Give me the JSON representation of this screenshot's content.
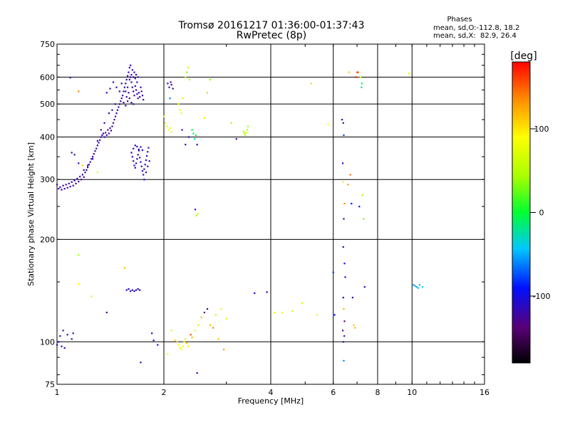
{
  "header": {
    "title_line1": "Tromsø 20161217 01:36:00-01:37:43",
    "title_line2": "RwPretec (8p)"
  },
  "phases_panel": {
    "heading": "Phases",
    "line_o": "mean, sd,O:-112.8, 18.2",
    "line_x": "mean, sd,X:  82.9, 26.4"
  },
  "chart_data": {
    "type": "scatter",
    "x_scale": "log",
    "y_scale": "log",
    "xlim": [
      1,
      16
    ],
    "ylim": [
      75,
      750
    ],
    "xlabel": "Frequency [MHz]",
    "ylabel": "Stationary phase Virtual Height [km]",
    "x_ticks": [
      1,
      2,
      4,
      6,
      8,
      10,
      16
    ],
    "y_ticks": [
      75,
      100,
      200,
      300,
      400,
      500,
      600,
      750
    ],
    "x_gridlines": [
      2,
      4,
      6,
      8,
      10
    ],
    "y_gridlines": [
      100,
      200,
      300,
      400,
      500,
      600
    ],
    "grid": true,
    "colorbar": {
      "label": "[deg]",
      "range": [
        -180,
        180
      ],
      "ticks": [
        -100,
        0,
        100
      ]
    },
    "points": [
      [
        1.0,
        290,
        -120
      ],
      [
        1.01,
        282,
        -120
      ],
      [
        1.02,
        285,
        -115
      ],
      [
        1.03,
        280,
        -122
      ],
      [
        1.04,
        288,
        -118
      ],
      [
        1.05,
        282,
        -120
      ],
      [
        1.06,
        290,
        -115
      ],
      [
        1.07,
        284,
        -120
      ],
      [
        1.08,
        292,
        -118
      ],
      [
        1.09,
        286,
        -122
      ],
      [
        1.1,
        295,
        -118
      ],
      [
        1.11,
        288,
        -120
      ],
      [
        1.12,
        298,
        -115
      ],
      [
        1.13,
        292,
        -120
      ],
      [
        1.14,
        302,
        -118
      ],
      [
        1.15,
        296,
        -122
      ],
      [
        1.16,
        306,
        -118
      ],
      [
        1.17,
        300,
        -120
      ],
      [
        1.18,
        310,
        -115
      ],
      [
        1.19,
        305,
        -120
      ],
      [
        1.2,
        315,
        -118
      ],
      [
        1.21,
        320,
        -120
      ],
      [
        1.22,
        326,
        -115
      ],
      [
        1.23,
        332,
        -120
      ],
      [
        1.24,
        338,
        -118
      ],
      [
        1.25,
        345,
        -122
      ],
      [
        1.26,
        350,
        -115
      ],
      [
        1.27,
        357,
        -120
      ],
      [
        1.28,
        364,
        -118
      ],
      [
        1.29,
        370,
        -120
      ],
      [
        1.3,
        378,
        -115
      ],
      [
        1.31,
        385,
        -120
      ],
      [
        1.32,
        392,
        -118
      ],
      [
        1.33,
        400,
        -122
      ],
      [
        1.34,
        405,
        -118
      ],
      [
        1.35,
        410,
        -120
      ],
      [
        1.36,
        400,
        -115
      ],
      [
        1.37,
        412,
        -120
      ],
      [
        1.38,
        405,
        -118
      ],
      [
        1.39,
        420,
        -122
      ],
      [
        1.4,
        410,
        -118
      ],
      [
        1.41,
        425,
        -120
      ],
      [
        1.42,
        418,
        -115
      ],
      [
        1.43,
        430,
        -120
      ],
      [
        1.44,
        440,
        -118
      ],
      [
        1.45,
        450,
        -122
      ],
      [
        1.46,
        460,
        -118
      ],
      [
        1.47,
        470,
        -120
      ],
      [
        1.48,
        480,
        -115
      ],
      [
        1.49,
        490,
        -120
      ],
      [
        1.5,
        500,
        -118
      ],
      [
        1.51,
        510,
        -122
      ],
      [
        1.52,
        520,
        -118
      ],
      [
        1.53,
        530,
        -120
      ],
      [
        1.54,
        545,
        -115
      ],
      [
        1.55,
        560,
        -120
      ],
      [
        1.56,
        575,
        -118
      ],
      [
        1.57,
        590,
        -122
      ],
      [
        1.58,
        605,
        -118
      ],
      [
        1.59,
        620,
        -120
      ],
      [
        1.6,
        640,
        -115
      ],
      [
        1.61,
        600,
        -120
      ],
      [
        1.62,
        580,
        -118
      ],
      [
        1.63,
        560,
        -122
      ],
      [
        1.64,
        545,
        -118
      ],
      [
        1.65,
        530,
        -120
      ],
      [
        1.66,
        565,
        -115
      ],
      [
        1.67,
        550,
        -120
      ],
      [
        1.68,
        535,
        -118
      ],
      [
        1.69,
        520,
        -122
      ],
      [
        1.7,
        540,
        -118
      ],
      [
        1.71,
        525,
        -120
      ],
      [
        1.72,
        560,
        -115
      ],
      [
        1.73,
        545,
        -120
      ],
      [
        1.74,
        530,
        -118
      ],
      [
        1.75,
        515,
        -122
      ],
      [
        1.56,
        545,
        -118
      ],
      [
        1.58,
        560,
        -120
      ],
      [
        1.6,
        590,
        -115
      ],
      [
        1.62,
        610,
        -120
      ],
      [
        1.64,
        600,
        -118
      ],
      [
        1.66,
        595,
        -122
      ],
      [
        1.68,
        580,
        -118
      ],
      [
        1.61,
        650,
        -120
      ],
      [
        1.63,
        630,
        -115
      ],
      [
        1.65,
        620,
        -120
      ],
      [
        1.67,
        610,
        -118
      ],
      [
        1.69,
        600,
        -122
      ],
      [
        1.57,
        525,
        -118
      ],
      [
        1.59,
        540,
        -120
      ],
      [
        1.54,
        505,
        -115
      ],
      [
        1.56,
        495,
        -120
      ],
      [
        1.58,
        510,
        -118
      ],
      [
        1.6,
        520,
        -122
      ],
      [
        1.62,
        505,
        -118
      ],
      [
        1.64,
        500,
        -120
      ],
      [
        1.62,
        360,
        -110
      ],
      [
        1.63,
        350,
        -112
      ],
      [
        1.64,
        340,
        -115
      ],
      [
        1.65,
        330,
        -110
      ],
      [
        1.66,
        325,
        -112
      ],
      [
        1.67,
        335,
        -115
      ],
      [
        1.68,
        345,
        -110
      ],
      [
        1.69,
        355,
        -112
      ],
      [
        1.7,
        365,
        -115
      ],
      [
        1.71,
        348,
        -110
      ],
      [
        1.72,
        338,
        -112
      ],
      [
        1.73,
        328,
        -115
      ],
      [
        1.74,
        318,
        -110
      ],
      [
        1.75,
        310,
        -112
      ],
      [
        1.76,
        322,
        -115
      ],
      [
        1.77,
        332,
        -110
      ],
      [
        1.78,
        342,
        -112
      ],
      [
        1.79,
        352,
        -115
      ],
      [
        1.8,
        362,
        -110
      ],
      [
        1.81,
        372,
        -112
      ],
      [
        1.76,
        300,
        -115
      ],
      [
        1.78,
        315,
        -110
      ],
      [
        1.8,
        328,
        -112
      ],
      [
        1.82,
        340,
        -115
      ],
      [
        1.64,
        370,
        -110
      ],
      [
        1.66,
        378,
        -112
      ],
      [
        1.68,
        375,
        -115
      ],
      [
        1.7,
        368,
        -110
      ],
      [
        1.72,
        374,
        -112
      ],
      [
        1.74,
        366,
        -115
      ],
      [
        1.1,
        360,
        -118
      ],
      [
        1.12,
        355,
        -120
      ],
      [
        1.15,
        335,
        -115
      ],
      [
        1.19,
        320,
        -118
      ],
      [
        1.22,
        330,
        -120
      ],
      [
        1.26,
        345,
        -115
      ],
      [
        1.3,
        390,
        -118
      ],
      [
        1.33,
        420,
        -120
      ],
      [
        1.36,
        440,
        -115
      ],
      [
        1.4,
        470,
        -118
      ],
      [
        1.43,
        480,
        -120
      ],
      [
        1.46,
        500,
        -115
      ],
      [
        1.38,
        540,
        -118
      ],
      [
        1.41,
        555,
        -120
      ],
      [
        1.44,
        580,
        -115
      ],
      [
        1.47,
        560,
        -118
      ],
      [
        1.5,
        545,
        -120
      ],
      [
        1.52,
        575,
        -115
      ],
      [
        1.09,
        598,
        -118
      ],
      [
        1.04,
        108,
        -118
      ],
      [
        1.02,
        104,
        -120
      ],
      [
        1.01,
        100,
        -115
      ],
      [
        1.0,
        98,
        -118
      ],
      [
        1.03,
        97,
        -120
      ],
      [
        1.05,
        96,
        -118
      ],
      [
        1.07,
        105,
        -115
      ],
      [
        1.11,
        106,
        -120
      ],
      [
        1.1,
        102,
        -118
      ],
      [
        1.15,
        545,
        140
      ],
      [
        1.15,
        180,
        40
      ],
      [
        1.15,
        148,
        90
      ],
      [
        1.18,
        330,
        110
      ],
      [
        1.25,
        136,
        100
      ],
      [
        1.3,
        315,
        95
      ],
      [
        1.38,
        122,
        -130
      ],
      [
        1.55,
        165,
        120
      ],
      [
        1.57,
        142,
        -115
      ],
      [
        1.59,
        143,
        -110
      ],
      [
        1.61,
        141,
        -112
      ],
      [
        1.63,
        142,
        -115
      ],
      [
        1.65,
        141,
        -110
      ],
      [
        1.67,
        142,
        -112
      ],
      [
        1.69,
        143,
        -115
      ],
      [
        1.71,
        142,
        -110
      ],
      [
        1.72,
        87,
        -110
      ],
      [
        1.85,
        106,
        -110
      ],
      [
        1.87,
        101,
        -105
      ],
      [
        1.92,
        98,
        -100
      ],
      [
        2.05,
        575,
        -120
      ],
      [
        2.07,
        560,
        -118
      ],
      [
        2.09,
        580,
        -122
      ],
      [
        2.1,
        570,
        -120
      ],
      [
        2.12,
        555,
        -118
      ],
      [
        2.08,
        520,
        -60
      ],
      [
        2.02,
        440,
        80
      ],
      [
        2.04,
        430,
        75
      ],
      [
        2.06,
        420,
        85
      ],
      [
        2.08,
        425,
        80
      ],
      [
        2.1,
        415,
        78
      ],
      [
        2.0,
        460,
        85
      ],
      [
        2.2,
        500,
        70
      ],
      [
        2.22,
        480,
        75
      ],
      [
        2.24,
        470,
        80
      ],
      [
        2.26,
        520,
        65
      ],
      [
        2.3,
        600,
        55
      ],
      [
        2.32,
        620,
        30
      ],
      [
        2.34,
        640,
        60
      ],
      [
        2.36,
        590,
        50
      ],
      [
        2.25,
        420,
        -110
      ],
      [
        2.3,
        380,
        -115
      ],
      [
        2.35,
        400,
        -110
      ],
      [
        2.4,
        420,
        -10
      ],
      [
        2.42,
        410,
        -15
      ],
      [
        2.44,
        395,
        -20
      ],
      [
        2.46,
        405,
        -5
      ],
      [
        2.48,
        380,
        -105
      ],
      [
        2.45,
        245,
        -110
      ],
      [
        2.47,
        235,
        40
      ],
      [
        2.49,
        238,
        60
      ],
      [
        2.6,
        455,
        70
      ],
      [
        2.65,
        540,
        110
      ],
      [
        2.7,
        590,
        30
      ],
      [
        3.1,
        440,
        45
      ],
      [
        3.2,
        395,
        -125
      ],
      [
        3.35,
        415,
        50
      ],
      [
        3.37,
        410,
        55
      ],
      [
        3.39,
        405,
        45
      ],
      [
        3.41,
        412,
        60
      ],
      [
        3.43,
        420,
        50
      ],
      [
        3.45,
        430,
        40
      ],
      [
        2.1,
        108,
        95
      ],
      [
        2.15,
        101,
        105
      ],
      [
        2.18,
        100,
        115
      ],
      [
        2.2,
        98,
        85
      ],
      [
        2.22,
        96,
        80
      ],
      [
        2.24,
        95,
        90
      ],
      [
        2.26,
        97,
        75
      ],
      [
        2.28,
        100,
        95
      ],
      [
        2.3,
        102,
        70
      ],
      [
        2.32,
        99,
        110
      ],
      [
        2.34,
        97,
        85
      ],
      [
        2.38,
        105,
        160
      ],
      [
        2.4,
        103,
        120
      ],
      [
        2.45,
        108,
        95
      ],
      [
        2.5,
        112,
        60
      ],
      [
        2.55,
        118,
        115
      ],
      [
        2.6,
        122,
        -130
      ],
      [
        2.65,
        125,
        -120
      ],
      [
        2.7,
        112,
        115
      ],
      [
        2.75,
        110,
        140
      ],
      [
        2.8,
        120,
        60
      ],
      [
        2.85,
        102,
        115
      ],
      [
        2.9,
        125,
        95
      ],
      [
        2.95,
        95,
        130
      ],
      [
        3.0,
        117,
        80
      ],
      [
        2.05,
        92,
        80
      ],
      [
        2.48,
        81,
        -110
      ],
      [
        3.6,
        139,
        -110
      ],
      [
        3.9,
        140,
        -110
      ],
      [
        4.1,
        122,
        80
      ],
      [
        4.3,
        122,
        85
      ],
      [
        4.6,
        123,
        70
      ],
      [
        4.9,
        130,
        65
      ],
      [
        5.2,
        575,
        105
      ],
      [
        5.4,
        120,
        95
      ],
      [
        5.8,
        435,
        90
      ],
      [
        6.0,
        160,
        -80
      ],
      [
        6.05,
        120,
        -90
      ],
      [
        6.35,
        450,
        -120
      ],
      [
        6.4,
        440,
        -110
      ],
      [
        6.42,
        405,
        -80
      ],
      [
        6.38,
        335,
        -100
      ],
      [
        6.4,
        295,
        95
      ],
      [
        6.45,
        255,
        135
      ],
      [
        6.42,
        230,
        -125
      ],
      [
        6.4,
        190,
        -115
      ],
      [
        6.45,
        170,
        -95
      ],
      [
        6.48,
        155,
        -100
      ],
      [
        6.4,
        135,
        -110
      ],
      [
        6.42,
        125,
        120
      ],
      [
        6.45,
        115,
        -130
      ],
      [
        6.38,
        108,
        -125
      ],
      [
        6.44,
        104,
        -120
      ],
      [
        6.4,
        100,
        -125
      ],
      [
        6.42,
        88,
        -60
      ],
      [
        6.6,
        290,
        130
      ],
      [
        6.65,
        620,
        110
      ],
      [
        6.7,
        310,
        145
      ],
      [
        6.75,
        255,
        -90
      ],
      [
        6.8,
        135,
        -105
      ],
      [
        6.85,
        112,
        110
      ],
      [
        6.9,
        110,
        120
      ],
      [
        6.95,
        600,
        175
      ],
      [
        7.0,
        620,
        165
      ],
      [
        7.05,
        620,
        150
      ],
      [
        7.1,
        250,
        -90
      ],
      [
        7.15,
        600,
        60
      ],
      [
        7.2,
        560,
        -20
      ],
      [
        7.22,
        575,
        -5
      ],
      [
        7.25,
        270,
        40
      ],
      [
        7.3,
        230,
        30
      ],
      [
        7.35,
        145,
        -110
      ],
      [
        9.8,
        615,
        80
      ],
      [
        10.1,
        147,
        -60
      ],
      [
        10.2,
        146,
        -50
      ],
      [
        10.3,
        145,
        -55
      ],
      [
        10.4,
        144,
        -45
      ],
      [
        10.5,
        147,
        -50
      ],
      [
        10.7,
        145,
        -40
      ]
    ]
  }
}
